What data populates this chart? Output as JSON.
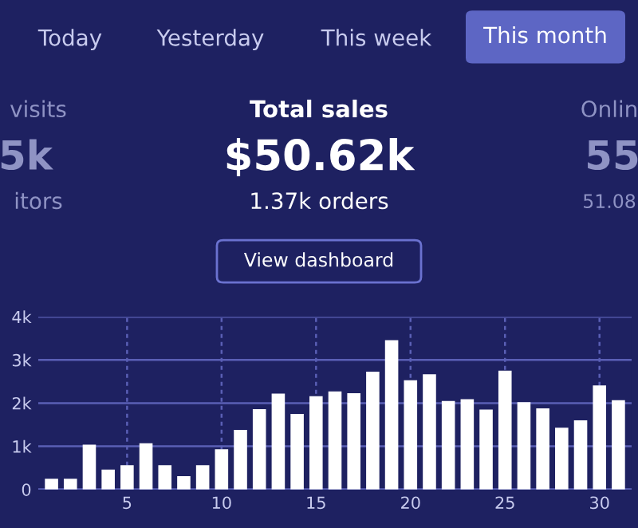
{
  "chart_data": {
    "type": "bar",
    "title": "Total sales",
    "subtitle": "$50.62k",
    "annotations": [
      "Today",
      "Yesterday",
      "This week",
      "This month",
      "visits",
      "5k",
      "itors",
      "1.37k orders",
      "View dashboard",
      "Onlin",
      "55",
      "51.08"
    ],
    "x": [
      1,
      2,
      3,
      4,
      5,
      6,
      7,
      8,
      9,
      10,
      11,
      12,
      13,
      14,
      15,
      16,
      17,
      18,
      19,
      20,
      21,
      22,
      23,
      24,
      25,
      26,
      27,
      28,
      29,
      30,
      31
    ],
    "values": [
      0.25,
      0.25,
      1.04,
      0.46,
      0.56,
      1.07,
      0.56,
      0.31,
      0.56,
      0.93,
      1.38,
      1.86,
      2.22,
      1.75,
      2.16,
      2.27,
      2.23,
      2.73,
      3.46,
      2.53,
      2.67,
      2.05,
      2.09,
      1.85,
      2.75,
      2.02,
      1.88,
      1.43,
      1.6,
      2.41,
      2.07
    ],
    "color": "#ffffff",
    "xlim": [
      0.3,
      31.7
    ],
    "xticks": [
      5,
      10,
      15,
      20,
      25,
      30
    ],
    "ylim": [
      0,
      4
    ],
    "yticks": [
      {
        "value": 0,
        "label": "0"
      },
      {
        "value": 1,
        "label": "1k"
      },
      {
        "value": 2,
        "label": "2k"
      },
      {
        "value": 3,
        "label": "3k"
      },
      {
        "value": 4,
        "label": "4k"
      }
    ],
    "grid": true
  }
}
